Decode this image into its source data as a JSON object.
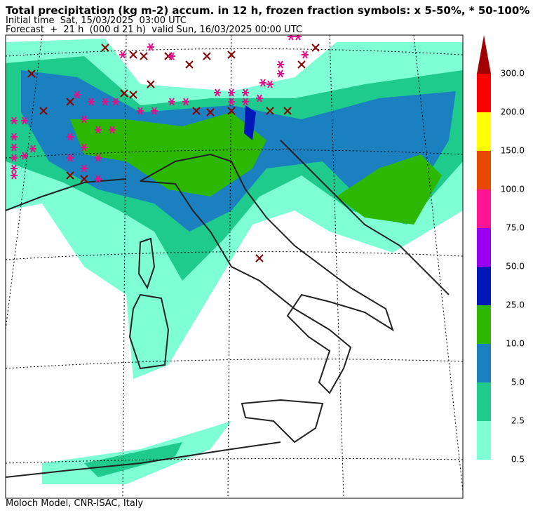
{
  "header": {
    "title": "Total precipitation (kg m-2) accum. in 12 h, frozen fraction symbols: x 5-50%, * 50-100%",
    "initial_time": "Initial time  Sat, 15/03/2025  03:00 UTC",
    "forecast": "Forecast  +  21 h  (000 d 21 h)  valid Sun, 16/03/2025 00:00 UTC"
  },
  "colorbar": {
    "labels": [
      "0.5",
      "2.5",
      "5.0",
      "10.0",
      "25.0",
      "50.0",
      "75.0",
      "100.0",
      "150.0",
      "200.0",
      "300.0"
    ],
    "colors": [
      "#7fffd4",
      "#1ecb8c",
      "#1a80c0",
      "#2db800",
      "#0018b8",
      "#9a00f0",
      "#ff1493",
      "#e64800",
      "#ffff00",
      "#ff0000"
    ],
    "extend_color": "#a00000"
  },
  "footer": "Moloch Model, CNR-ISAC, Italy"
}
